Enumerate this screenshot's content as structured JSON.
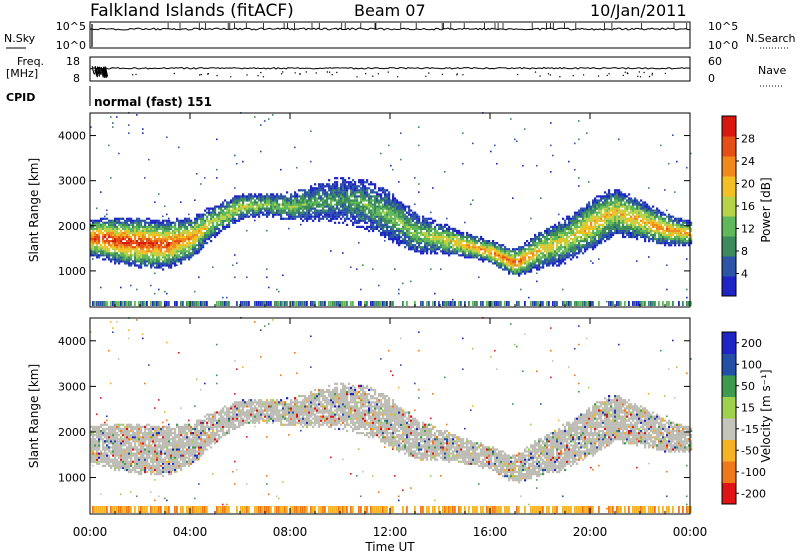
{
  "header": {
    "station": "Falkland Islands (fitACF)",
    "beam": "Beam 07",
    "date": "10/Jan/2011"
  },
  "noise_panel": {
    "left_label": "N.Sky",
    "right_label": "N.Search",
    "left_ticks": [
      "10^5",
      "10^0"
    ],
    "right_ticks": [
      "10^5",
      "10^0"
    ]
  },
  "freq_panel": {
    "left_label_1": "Freq.",
    "left_label_2": "[MHz]",
    "right_label": "Nave",
    "left_ticks": [
      "18",
      "8"
    ],
    "right_ticks": [
      "60",
      "0"
    ]
  },
  "cpid": {
    "label": "CPID",
    "value": "normal (fast) 151"
  },
  "colors": {
    "power": [
      "#1f25c4",
      "#2c55a8",
      "#3d8a5c",
      "#5fb85a",
      "#b8d24a",
      "#f2c023",
      "#f08a1c",
      "#e54e14",
      "#d8180f"
    ],
    "velocity": [
      "#e01414",
      "#f07818",
      "#f5b225",
      "#c4c4bd",
      "#9fd24c",
      "#3f9a4f",
      "#244fa7",
      "#1f25c4"
    ],
    "ground_scatter": "#bdbdb5"
  },
  "chart_data": [
    {
      "type": "heatmap",
      "panel": "power",
      "ylabel": "Slant Range [km]",
      "y_ticks": [
        "1000",
        "2000",
        "3000",
        "4000"
      ],
      "ylim": [
        200,
        4500
      ],
      "x_ticks": [
        "00:00",
        "04:00",
        "08:00",
        "12:00",
        "16:00",
        "20:00",
        "00:00"
      ],
      "xlim_hours": [
        0,
        24
      ],
      "colorbar": {
        "label": "Power [dB]",
        "ticks": [
          "4",
          "8",
          "12",
          "16",
          "20",
          "24",
          "28"
        ],
        "range": [
          0,
          32
        ]
      },
      "bands": [
        {
          "time_h": [
            0.0,
            0.5,
            1.0,
            2.0,
            3.0,
            4.0,
            5.0,
            6.0,
            7.0,
            8.0,
            9.0,
            10.0,
            11.0,
            12.0,
            13.0,
            14.0,
            15.0,
            16.0,
            17.0,
            18.0,
            19.0,
            20.0,
            21.0,
            22.0,
            23.0,
            24.0
          ],
          "center_km": [
            1700,
            1700,
            1650,
            1600,
            1560,
            1700,
            2100,
            2400,
            2450,
            2400,
            2500,
            2550,
            2450,
            2200,
            1800,
            1700,
            1550,
            1400,
            1150,
            1450,
            1650,
            2000,
            2300,
            2100,
            1900,
            1800
          ],
          "peak_db": [
            28,
            29,
            29,
            29,
            28,
            24,
            16,
            18,
            14,
            14,
            12,
            10,
            12,
            14,
            14,
            18,
            22,
            24,
            26,
            20,
            18,
            22,
            20,
            22,
            24,
            22
          ]
        }
      ]
    },
    {
      "type": "heatmap",
      "panel": "velocity",
      "ylabel": "Slant Range [km]",
      "y_ticks": [
        "1000",
        "2000",
        "3000",
        "4000"
      ],
      "ylim": [
        200,
        4500
      ],
      "x_ticks": [
        "00:00",
        "04:00",
        "08:00",
        "12:00",
        "16:00",
        "20:00",
        "00:00"
      ],
      "xlim_hours": [
        0,
        24
      ],
      "xlabel": "Time UT",
      "colorbar": {
        "label": "Velocity [m s⁻¹]",
        "ticks": [
          "200",
          "100",
          "50",
          "15",
          "-15",
          "-50",
          "-100",
          "-200"
        ],
        "range": [
          -250,
          250
        ]
      }
    }
  ]
}
